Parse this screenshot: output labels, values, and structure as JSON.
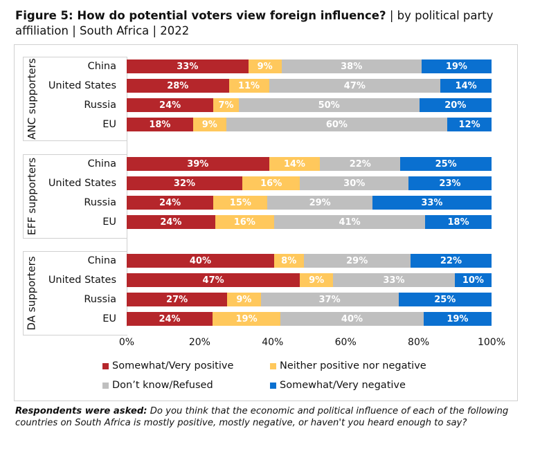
{
  "title": {
    "bold": "Figure 5: How do potential voters view foreign influence?",
    "rest": " | by political party affiliation | South Africa | 2022"
  },
  "note": {
    "bold": "Respondents were asked:",
    "text": " Do you think that the economic and political influence of each of the following countries on South Africa is mostly positive, mostly negative, or haven't you heard enough to say?"
  },
  "chart_data": {
    "type": "bar",
    "orientation": "horizontal-stacked-100",
    "xlim": [
      0,
      100
    ],
    "xticks": [
      "0%",
      "20%",
      "40%",
      "60%",
      "80%",
      "100%"
    ],
    "legend_placement": "bottom",
    "series": [
      {
        "name": "Somewhat/Very positive",
        "color": "#B5262B"
      },
      {
        "name": "Neither positive nor negative",
        "color": "#FFC85C"
      },
      {
        "name": "Don’t know/Refused",
        "color": "#BFBFBF"
      },
      {
        "name": "Somewhat/Very negative",
        "color": "#0A70D0"
      }
    ],
    "groups": [
      {
        "name": "ANC supporters",
        "rows": [
          {
            "category": "China",
            "values": [
              33,
              9,
              38,
              19
            ]
          },
          {
            "category": "United States",
            "values": [
              28,
              11,
              47,
              14
            ]
          },
          {
            "category": "Russia",
            "values": [
              24,
              7,
              50,
              20
            ]
          },
          {
            "category": "EU",
            "values": [
              18,
              9,
              60,
              12
            ]
          }
        ]
      },
      {
        "name": "EFF supporters",
        "rows": [
          {
            "category": "China",
            "values": [
              39,
              14,
              22,
              25
            ]
          },
          {
            "category": "United States",
            "values": [
              32,
              16,
              30,
              23
            ]
          },
          {
            "category": "Russia",
            "values": [
              24,
              15,
              29,
              33
            ]
          },
          {
            "category": "EU",
            "values": [
              24,
              16,
              41,
              18
            ]
          }
        ]
      },
      {
        "name": "DA supporters",
        "rows": [
          {
            "category": "China",
            "values": [
              40,
              8,
              29,
              22
            ]
          },
          {
            "category": "United States",
            "values": [
              47,
              9,
              33,
              10
            ]
          },
          {
            "category": "Russia",
            "values": [
              27,
              9,
              37,
              25
            ]
          },
          {
            "category": "EU",
            "values": [
              24,
              19,
              40,
              19
            ]
          }
        ]
      }
    ]
  }
}
